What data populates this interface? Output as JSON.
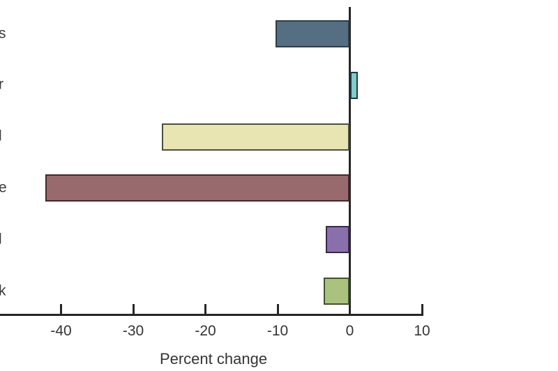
{
  "chart_data": {
    "type": "bar",
    "orientation": "horizontal",
    "title": "",
    "xlabel": "Percent change",
    "ylabel": "",
    "categories": [
      "s",
      "r",
      "l",
      "e",
      "l",
      "k"
    ],
    "categories_note": "labels truncated at left image edge; only final letters visible",
    "values": [
      -10.3,
      1.1,
      -26.0,
      -42.2,
      -3.3,
      -3.6
    ],
    "x_ticks": [
      -40,
      -30,
      -20,
      -10,
      0,
      10
    ],
    "xlim": [
      -48.5,
      10.5
    ],
    "grid": false,
    "legend": null,
    "bar_colors": [
      "#556e82",
      "#7fccc9",
      "#e9e5b3",
      "#996a6d",
      "#8a6fad",
      "#a9c37e"
    ],
    "bar_border_colors": [
      "#2e3c49",
      "#1f3a41",
      "#4e4d42",
      "#43282b",
      "#352a4d",
      "#42502f"
    ],
    "axis_color": "#262626",
    "text_color": "#343434"
  }
}
